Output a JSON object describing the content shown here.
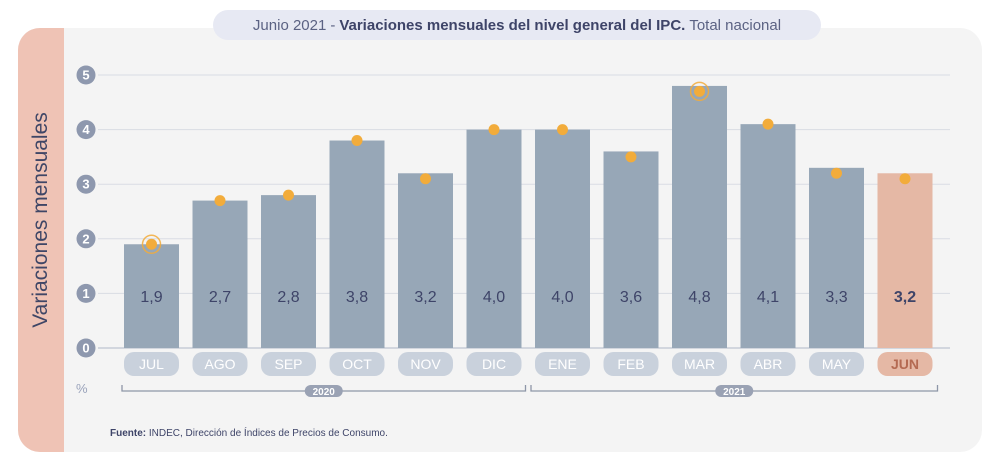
{
  "side_label": "Variaciones mensuales",
  "title": {
    "prefix": "Junio 2021",
    "separator": "-",
    "main": "Variaciones mensuales del nivel general del IPC.",
    "suffix": "Total nacional"
  },
  "unit_label": "%",
  "source": {
    "label": "Fuente:",
    "text": "INDEC, Dirección de Índices de Precios de Consumo."
  },
  "colors": {
    "bar": "#97a7b7",
    "bar_highlight": "#e5b8a5",
    "dot": "#f2ac3b",
    "text_dark": "#3e4468",
    "label_pill": "#c9d1dc",
    "grid": "#d9dce3"
  },
  "chart_data": {
    "type": "bar",
    "title": "Variaciones mensuales del nivel general del IPC",
    "ylabel": "Variaciones mensuales",
    "unit": "%",
    "ylim": [
      0,
      5
    ],
    "yticks": [
      "0",
      "1",
      "2",
      "3",
      "4",
      "5"
    ],
    "categories": [
      "JUL",
      "AGO",
      "SEP",
      "OCT",
      "NOV",
      "DIC",
      "ENE",
      "FEB",
      "MAR",
      "ABR",
      "MAY",
      "JUN"
    ],
    "values": [
      1.9,
      2.7,
      2.8,
      3.8,
      3.2,
      4.0,
      4.0,
      3.6,
      4.8,
      4.1,
      3.3,
      3.2
    ],
    "value_labels": [
      "1,9",
      "2,7",
      "2,8",
      "3,8",
      "3,2",
      "4,0",
      "4,0",
      "3,6",
      "4,8",
      "4,1",
      "3,3",
      "3,2"
    ],
    "markers": [
      1.9,
      2.7,
      2.8,
      3.8,
      3.1,
      4.0,
      4.0,
      3.5,
      4.7,
      4.1,
      3.2,
      3.1
    ],
    "ringed_markers": [
      0,
      8
    ],
    "highlight_index": 11,
    "year_groups": [
      {
        "label": "2020",
        "start": 0,
        "end": 5
      },
      {
        "label": "2021",
        "start": 6,
        "end": 11
      }
    ],
    "grid": true
  }
}
